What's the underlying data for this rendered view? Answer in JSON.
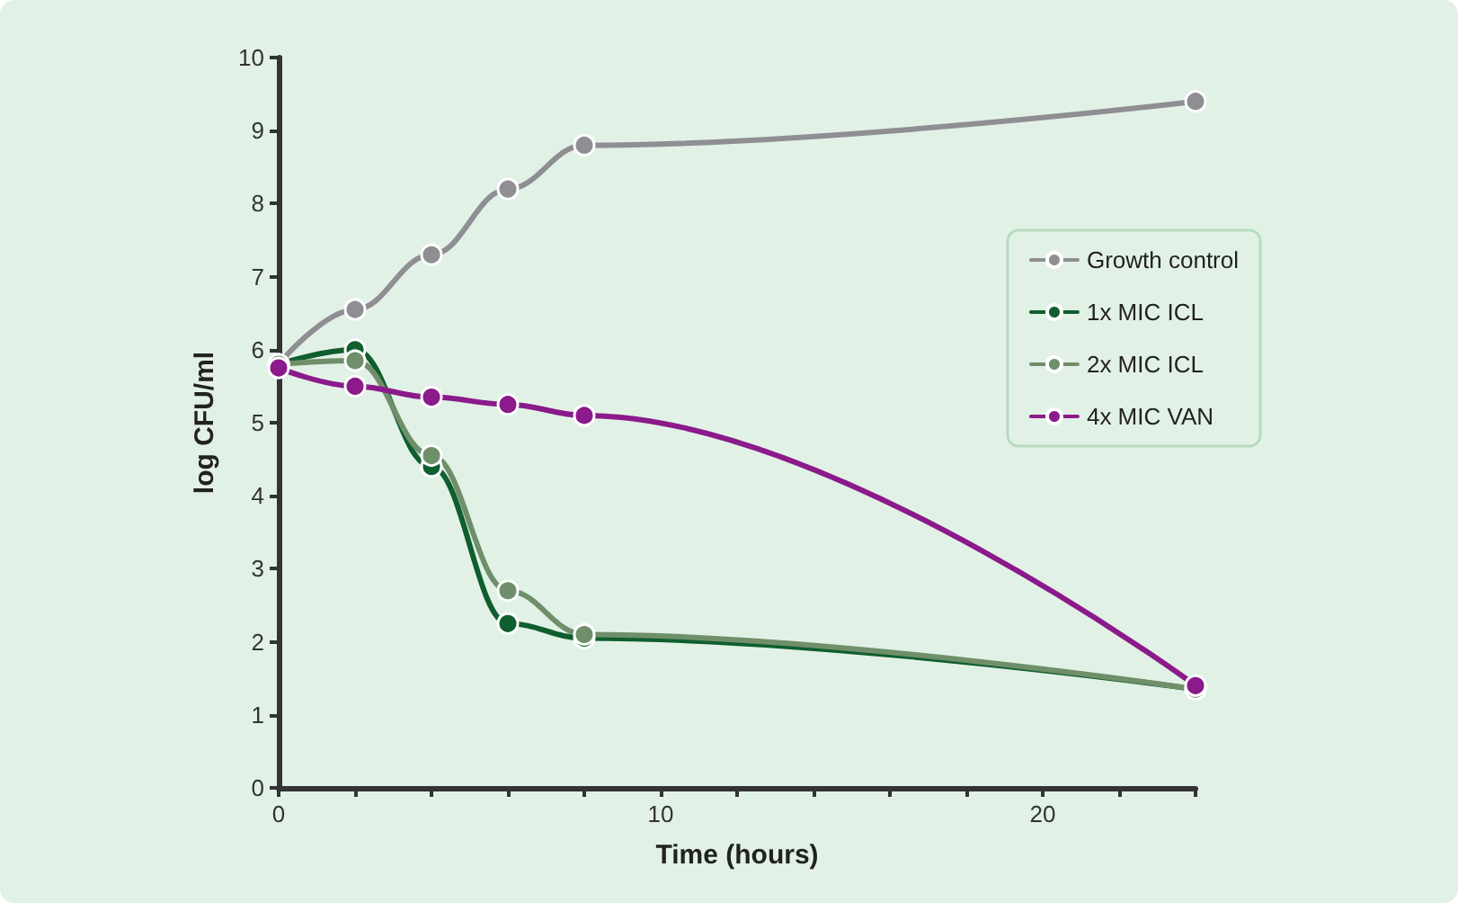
{
  "chart_data": {
    "type": "line",
    "xlabel": "Time (hours)",
    "ylabel": "log CFU/ml",
    "x": [
      0,
      2,
      4,
      6,
      8,
      24
    ],
    "series": [
      {
        "name": "Growth control",
        "color": "#8e8e93",
        "values": [
          5.8,
          6.55,
          7.3,
          8.2,
          8.8,
          9.4
        ]
      },
      {
        "name": "1x MIC ICL",
        "color": "#0f5e2e",
        "values": [
          5.8,
          6.0,
          4.4,
          2.25,
          2.05,
          1.35
        ]
      },
      {
        "name": "2x MIC ICL",
        "color": "#6f8f6a",
        "values": [
          5.8,
          5.85,
          4.55,
          2.7,
          2.1,
          1.35
        ]
      },
      {
        "name": "4x MIC VAN",
        "color": "#8b1a8b",
        "values": [
          5.75,
          5.5,
          5.35,
          5.25,
          5.1,
          1.4
        ]
      }
    ],
    "xlim": [
      0,
      24
    ],
    "xticks": [
      0,
      {
        "value": 2,
        "label": null
      },
      {
        "value": 4,
        "label": null
      },
      {
        "value": 6,
        "label": null
      },
      {
        "value": 8,
        "label": null
      },
      10,
      {
        "value": 12,
        "label": null
      },
      {
        "value": 14,
        "label": null
      },
      {
        "value": 16,
        "label": null
      },
      {
        "value": 18,
        "label": null
      },
      20,
      {
        "value": 22,
        "label": null
      },
      {
        "value": 24,
        "label": null
      }
    ],
    "ylim": [
      0,
      10
    ],
    "yticks": [
      0,
      1,
      2,
      3,
      4,
      5,
      6,
      7,
      8,
      9,
      10
    ],
    "grid": false,
    "legend": "top right",
    "marker": "circle",
    "line_style": "solid"
  }
}
